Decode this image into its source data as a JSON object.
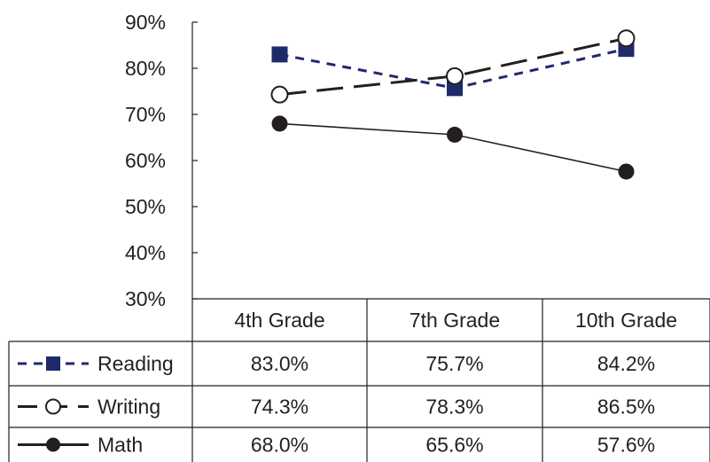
{
  "chart_data": {
    "type": "line",
    "categories": [
      "4th Grade",
      "7th Grade",
      "10th Grade"
    ],
    "y_ticks": [
      "90%",
      "80%",
      "70%",
      "60%",
      "50%",
      "40%",
      "30%"
    ],
    "ylim": [
      30,
      90
    ],
    "grid": false,
    "legend": "table-bottom-left",
    "series": [
      {
        "name": "Reading",
        "values": [
          83.0,
          75.7,
          84.2
        ],
        "labels": [
          "83.0%",
          "75.7%",
          "84.2%"
        ],
        "color": "#1f2a6b",
        "marker": "square-filled",
        "line": "dashed"
      },
      {
        "name": "Writing",
        "values": [
          74.3,
          78.3,
          86.5
        ],
        "labels": [
          "74.3%",
          "78.3%",
          "86.5%"
        ],
        "color": "#231f20",
        "marker": "circle-open",
        "line": "dash-dot"
      },
      {
        "name": "Math",
        "values": [
          68.0,
          65.6,
          57.6
        ],
        "labels": [
          "68.0%",
          "65.6%",
          "57.6%"
        ],
        "color": "#231f20",
        "marker": "circle-filled",
        "line": "solid"
      }
    ]
  }
}
